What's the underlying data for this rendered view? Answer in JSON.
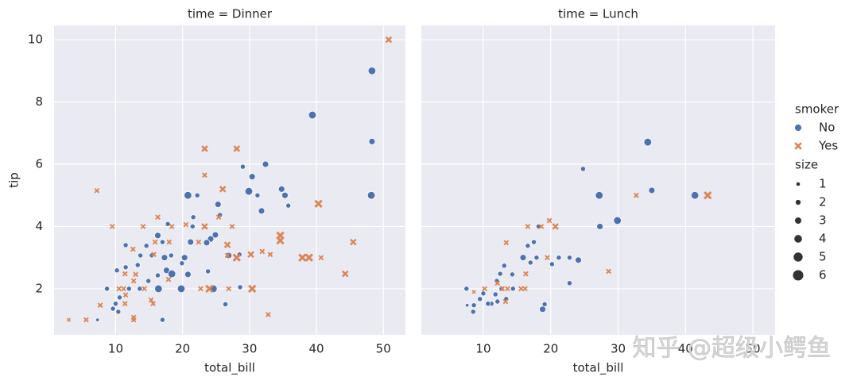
{
  "chart_data": {
    "type": "scatter",
    "xlabel": "total_bill",
    "ylabel": "tip",
    "xlim": [
      0.8,
      53.3
    ],
    "ylim": [
      0.52,
      10.46
    ],
    "xticks": [
      10,
      20,
      30,
      40,
      50
    ],
    "yticks": [
      2,
      4,
      6,
      8,
      10
    ],
    "grid": true,
    "hue_title": "smoker",
    "size_title": "size",
    "size_levels": [
      1,
      2,
      3,
      4,
      5,
      6
    ],
    "series": [
      {
        "name": "No",
        "color": "#4c72b0",
        "marker": "circle"
      },
      {
        "name": "Yes",
        "color": "#dd8452",
        "marker": "x"
      }
    ],
    "panels": [
      {
        "title": "time = Dinner",
        "data": [
          {
            "x": [
              48.3,
              39.4,
              48.3,
              48.2,
              32.4,
              29.0,
              30.4,
              29.9,
              31.2,
              34.8,
              35.3,
              35.8,
              31.8,
              20.8,
              22.2,
              25.3,
              21.6,
              25.6,
              17.8,
              21.5,
              24.9,
              24.2,
              23.6,
              21.2,
              16.3,
              17.0,
              14.6,
              13.7,
              15.4,
              17.3,
              18.3,
              20.3,
              19.9,
              26.9,
              28.5,
              17.6,
              18.4,
              16.3,
              20.8,
              14.9,
              23.8,
              10.2,
              11.5,
              13.3,
              8.7,
              12.0,
              13.6,
              16.4,
              19.8,
              24.6,
              28.6,
              10.6,
              10.0,
              9.6,
              10.4,
              26.4,
              11.5,
              7.3,
              17.0
            ],
            "values": [
              9.0,
              7.58,
              6.73,
              5.0,
              6.0,
              5.92,
              5.6,
              5.13,
              5.0,
              5.2,
              5.0,
              4.67,
              4.5,
              5.0,
              5.0,
              4.71,
              4.3,
              4.37,
              4.08,
              4.0,
              3.73,
              3.6,
              3.48,
              3.5,
              3.71,
              3.5,
              3.38,
              3.07,
              3.07,
              3.0,
              3.07,
              3.0,
              2.82,
              3.07,
              3.1,
              2.59,
              2.48,
              2.43,
              2.46,
              2.25,
              2.56,
              2.59,
              2.69,
              2.76,
              2.0,
              2.0,
              2.0,
              2.0,
              2.0,
              2.0,
              2.05,
              1.72,
              1.52,
              1.36,
              1.26,
              1.5,
              3.4,
              1.0,
              1.0
            ],
            "sizes": [
              4,
              4,
              3,
              4,
              3,
              2,
              3,
              4,
              2,
              3,
              3,
              2,
              3,
              4,
              2,
              3,
              2,
              2,
              2,
              2,
              3,
              3,
              3,
              3,
              3,
              2,
              2,
              2,
              2,
              3,
              2,
              3,
              2,
              3,
              2,
              3,
              4,
              2,
              3,
              2,
              2,
              2,
              2,
              2,
              2,
              2,
              2,
              4,
              4,
              4,
              2,
              2,
              2,
              2,
              2,
              2,
              2,
              1,
              2
            ]
          },
          {
            "x": [
              50.8,
              23.3,
              28.1,
              23.3,
              7.2,
              26.0,
              40.3,
              25.4,
              16.3,
              9.5,
              14.1,
              20.5,
              23.3,
              27.4,
              18.4,
              45.5,
              34.6,
              34.6,
              31.9,
              33.1,
              30.2,
              26.7,
              26.7,
              28.1,
              37.9,
              38.9,
              40.7,
              18.0,
              22.4,
              15.9,
              12.6,
              15.7,
              11.4,
              12.7,
              13.0,
              17.9,
              44.3,
              24.0,
              26.9,
              30.4,
              14.3,
              11.2,
              10.5,
              22.7,
              11.5,
              15.3,
              15.6,
              11.4,
              7.7,
              12.7,
              12.7,
              5.6,
              3.0,
              32.8
            ],
            "values": [
              10.0,
              6.5,
              6.5,
              5.65,
              5.15,
              5.2,
              4.73,
              4.3,
              4.3,
              4.0,
              4.0,
              4.06,
              4.0,
              4.0,
              4.0,
              3.5,
              3.71,
              3.55,
              3.2,
              3.1,
              3.1,
              3.41,
              3.07,
              3.0,
              3.0,
              3.0,
              3.0,
              3.5,
              3.5,
              3.5,
              3.27,
              3.1,
              2.48,
              2.25,
              2.46,
              2.3,
              2.48,
              2.0,
              2.0,
              2.0,
              2.0,
              2.0,
              2.0,
              2.0,
              1.8,
              1.64,
              1.52,
              1.52,
              1.47,
              1.08,
              1.0,
              1.0,
              1.0,
              1.17
            ],
            "sizes": [
              3,
              3,
              3,
              2,
              2,
              3,
              4,
              2,
              2,
              2,
              2,
              2,
              3,
              2,
              2,
              3,
              4,
              4,
              2,
              2,
              3,
              3,
              2,
              4,
              4,
              4,
              2,
              2,
              2,
              2,
              2,
              2,
              2,
              2,
              2,
              2,
              3,
              4,
              2,
              4,
              2,
              2,
              2,
              2,
              2,
              2,
              2,
              2,
              2,
              2,
              2,
              2,
              1,
              2
            ]
          }
        ]
      },
      {
        "title": "time = Lunch",
        "data": [
          {
            "x": [
              34.4,
              35.0,
              27.2,
              41.4,
              29.9,
              27.3,
              24.8,
              18.2,
              17.5,
              16.6,
              13.1,
              15.9,
              17.0,
              17.9,
              21.2,
              22.8,
              24.1,
              20.2,
              22.8,
              14.3,
              12.5,
              12.0,
              7.5,
              10.0,
              9.5,
              11.8,
              12.7,
              14.4,
              13.4,
              11.2,
              10.7,
              7.6,
              8.6,
              8.5,
              19.1,
              18.8,
              12.1
            ],
            "values": [
              6.71,
              5.16,
              5.0,
              5.0,
              4.19,
              4.0,
              5.85,
              4.0,
              3.5,
              3.38,
              2.74,
              3.0,
              2.84,
              3.0,
              3.0,
              3.0,
              2.92,
              2.79,
              2.18,
              2.46,
              2.48,
              2.25,
              2.0,
              1.85,
              1.67,
              1.82,
              2.0,
              2.0,
              1.67,
              1.52,
              1.52,
              1.47,
              1.47,
              1.26,
              1.5,
              1.34,
              1.59
            ],
            "sizes": [
              4,
              3,
              4,
              4,
              4,
              3,
              2,
              2,
              2,
              2,
              2,
              3,
              2,
              2,
              2,
              2,
              3,
              2,
              2,
              2,
              2,
              2,
              2,
              2,
              2,
              2,
              2,
              2,
              2,
              2,
              2,
              1,
              2,
              2,
              2,
              3,
              2
            ]
          },
          {
            "x": [
              43.3,
              32.7,
              19.8,
              20.7,
              16.6,
              18.6,
              13.4,
              19.5,
              16.3,
              28.6,
              12.1,
              10.2,
              12.8,
              13.6,
              15.6,
              16.2,
              13.3,
              8.6
            ],
            "values": [
              5.0,
              5.0,
              4.19,
              4.0,
              4.0,
              4.0,
              3.48,
              3.0,
              2.48,
              2.56,
              2.18,
              2.0,
              2.0,
              2.0,
              2.0,
              2.0,
              1.59,
              1.9
            ],
            "sizes": [
              4,
              2,
              2,
              3,
              2,
              2,
              2,
              2,
              2,
              2,
              2,
              2,
              2,
              2,
              2,
              2,
              2,
              1
            ]
          }
        ]
      }
    ]
  },
  "watermark": "知乎 @超级小鳄鱼"
}
